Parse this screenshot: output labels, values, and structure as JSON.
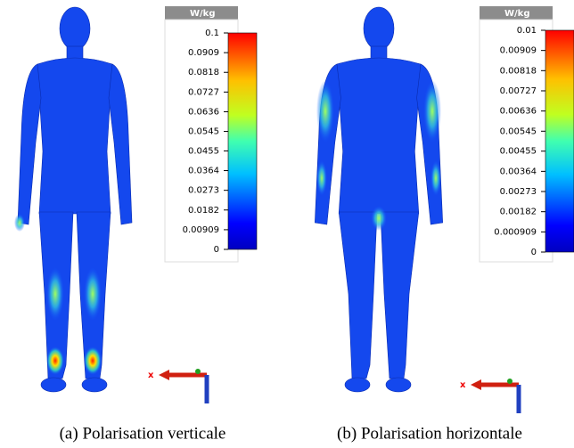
{
  "panels": [
    {
      "caption": "(a) Polarisation verticale",
      "axis_label": "x",
      "colorbar": {
        "unit": "W/kg",
        "lim": [
          0,
          0.1
        ],
        "ticks": [
          0.1,
          0.0909,
          0.0818,
          0.0727,
          0.0636,
          0.0545,
          0.0455,
          0.0364,
          0.0273,
          0.0182,
          0.00909,
          0
        ]
      }
    },
    {
      "caption": "(b) Polarisation horizontale",
      "axis_label": "x",
      "colorbar": {
        "unit": "W/kg",
        "lim": [
          0,
          0.01
        ],
        "ticks": [
          0.01,
          0.00909,
          0.00818,
          0.00727,
          0.00636,
          0.00545,
          0.00455,
          0.00364,
          0.00273,
          0.00182,
          0.000909,
          0
        ]
      }
    }
  ]
}
